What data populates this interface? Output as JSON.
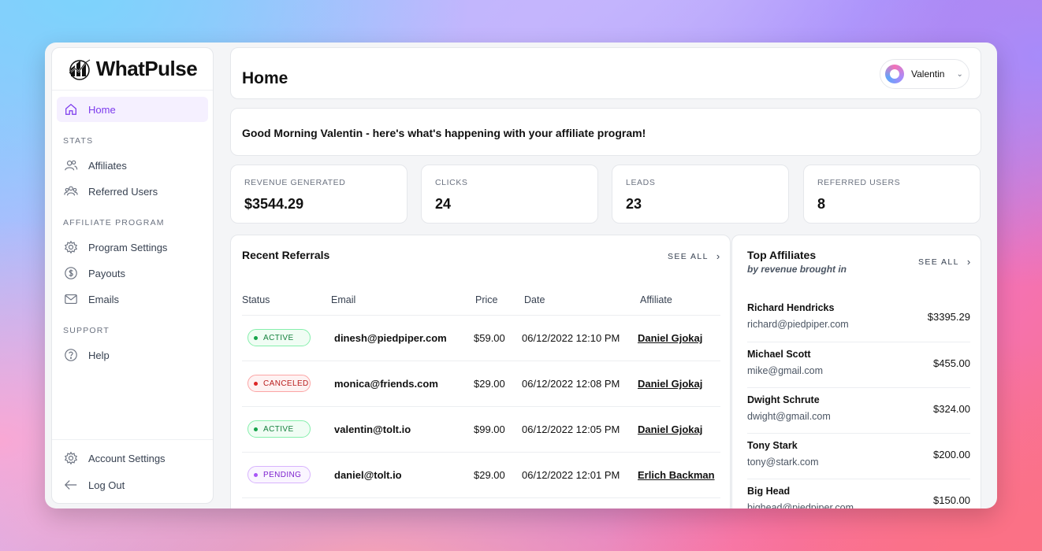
{
  "brand": {
    "name": "WhatPulse"
  },
  "sidebar": {
    "home": "Home",
    "stats_label": "STATS",
    "affiliates": "Affiliates",
    "referred_users": "Referred Users",
    "program_label": "AFFILIATE PROGRAM",
    "program_settings": "Program Settings",
    "payouts": "Payouts",
    "emails": "Emails",
    "support_label": "SUPPORT",
    "help": "Help",
    "account_settings": "Account Settings",
    "log_out": "Log Out"
  },
  "header": {
    "title": "Home",
    "user": "Valentin"
  },
  "greeting": "Good Morning Valentin - here's what's happening with your affiliate program!",
  "stats": [
    {
      "label": "REVENUE GENERATED",
      "value": "$3544.29"
    },
    {
      "label": "CLICKS",
      "value": "24"
    },
    {
      "label": "LEADS",
      "value": "23"
    },
    {
      "label": "REFERRED USERS",
      "value": "8"
    }
  ],
  "referrals": {
    "title": "Recent Referrals",
    "see_all": "SEE ALL",
    "columns": {
      "status": "Status",
      "email": "Email",
      "price": "Price",
      "date": "Date",
      "affiliate": "Affiliate"
    },
    "rows": [
      {
        "status": "ACTIVE",
        "email": "dinesh@piedpiper.com",
        "price": "$59.00",
        "date": "06/12/2022 12:10 PM",
        "affiliate": "Daniel Gjokaj"
      },
      {
        "status": "CANCELED",
        "email": "monica@friends.com",
        "price": "$29.00",
        "date": "06/12/2022 12:08 PM",
        "affiliate": "Daniel Gjokaj"
      },
      {
        "status": "ACTIVE",
        "email": "valentin@tolt.io",
        "price": "$99.00",
        "date": "06/12/2022 12:05 PM",
        "affiliate": "Daniel Gjokaj"
      },
      {
        "status": "PENDING",
        "email": "daniel@tolt.io",
        "price": "$29.00",
        "date": "06/12/2022 12:01 PM",
        "affiliate": "Erlich Backman"
      }
    ]
  },
  "top_affiliates": {
    "title": "Top Affiliates",
    "subtitle": "by revenue brought in",
    "see_all": "SEE ALL",
    "items": [
      {
        "name": "Richard Hendricks",
        "email": "richard@piedpiper.com",
        "amount": "$3395.29"
      },
      {
        "name": "Michael Scott",
        "email": "mike@gmail.com",
        "amount": "$455.00"
      },
      {
        "name": "Dwight Schrute",
        "email": "dwight@gmail.com",
        "amount": "$324.00"
      },
      {
        "name": "Tony Stark",
        "email": "tony@stark.com",
        "amount": "$200.00"
      },
      {
        "name": "Big Head",
        "email": "bighead@piedpiper.com",
        "amount": "$150.00"
      }
    ]
  },
  "icons": {
    "home": "home-icon",
    "affiliates": "users-icon",
    "referred": "group-icon",
    "settings": "gear-icon",
    "payouts": "dollar-icon",
    "emails": "mail-icon",
    "help": "help-icon",
    "logout": "arrow-left-icon"
  },
  "colors": {
    "accent": "#7c3aed",
    "active": "#16a34a",
    "canceled": "#dc2626",
    "pending": "#a855f7"
  }
}
